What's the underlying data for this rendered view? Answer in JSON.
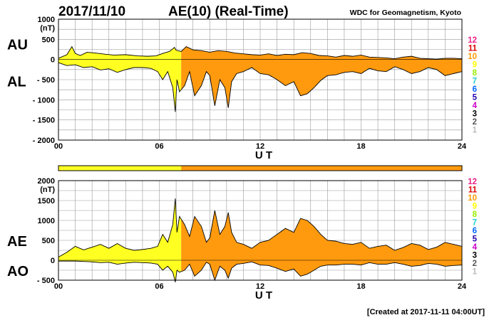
{
  "header": {
    "date": "2017/11/10",
    "title": "AE(10) (Real-Time)",
    "source": "WDC for Geomagnetism, Kyoto"
  },
  "footer": {
    "created": "[Created at 2017-11-11 04:00UT]"
  },
  "colors": {
    "fill_station_9": "#ffff22",
    "fill_station_10": "#ff9a0e",
    "grid": "#999999",
    "axis": "#000000"
  },
  "station_scale": {
    "labels": [
      "12",
      "11",
      "10",
      "9",
      "8",
      "7",
      "6",
      "5",
      "4",
      "3",
      "2",
      "1"
    ],
    "colors": [
      "#ee2288",
      "#dd0000",
      "#ff9900",
      "#ffff00",
      "#99ee00",
      "#22cccc",
      "#0066ff",
      "#2200aa",
      "#cc00cc",
      "#000000",
      "#555555",
      "#bbbbbb"
    ]
  },
  "chart_data": [
    {
      "type": "area",
      "name": "AU-AL",
      "left_labels": [
        "AU",
        "AL"
      ],
      "yunit": "(nT)",
      "xlabel": "U T",
      "xticks": [
        0,
        6,
        12,
        18,
        24
      ],
      "xtick_labels": [
        "00",
        "06",
        "12",
        "18",
        "24"
      ],
      "yticks": [
        1000,
        500,
        0,
        -500,
        -1000,
        -1500,
        -2000
      ],
      "ytick_labels": [
        "1000",
        "500",
        "0",
        "- 500",
        "- 1000",
        "- 1500",
        "- 2000"
      ],
      "xlim": [
        0,
        24
      ],
      "ylim": [
        -2000,
        1000
      ],
      "grid": true,
      "series": [
        {
          "name": "AU",
          "x": [
            0,
            0.5,
            0.8,
            1.0,
            1.3,
            1.7,
            2.2,
            2.8,
            3.3,
            4.0,
            4.7,
            5.3,
            5.8,
            6.2,
            6.6,
            6.9,
            7.0,
            7.3,
            7.6,
            8.0,
            8.5,
            9.0,
            9.5,
            10.0,
            10.5,
            11.0,
            11.5,
            12.0,
            12.5,
            13.0,
            13.5,
            14.0,
            14.5,
            15.0,
            15.5,
            16.0,
            16.5,
            17.0,
            17.5,
            18.0,
            18.5,
            19.0,
            19.5,
            20.0,
            20.5,
            21.0,
            21.5,
            22.0,
            22.5,
            23.0,
            23.5,
            24.0
          ],
          "values": [
            30,
            120,
            320,
            150,
            100,
            180,
            160,
            130,
            110,
            120,
            90,
            80,
            90,
            150,
            200,
            300,
            230,
            200,
            320,
            240,
            220,
            180,
            220,
            200,
            160,
            140,
            120,
            110,
            140,
            100,
            130,
            120,
            170,
            150,
            100,
            90,
            60,
            100,
            80,
            110,
            60,
            50,
            40,
            20,
            60,
            80,
            30,
            20,
            10,
            30,
            30,
            20
          ]
        },
        {
          "name": "AL",
          "x": [
            0,
            0.5,
            1.0,
            1.5,
            2.0,
            2.5,
            3.0,
            3.5,
            4.0,
            4.5,
            5.0,
            5.5,
            5.9,
            6.2,
            6.5,
            6.8,
            6.95,
            7.05,
            7.2,
            7.5,
            7.8,
            8.1,
            8.5,
            8.8,
            9.0,
            9.3,
            9.6,
            9.9,
            10.1,
            10.3,
            10.6,
            11.0,
            11.5,
            12.0,
            12.5,
            13.0,
            13.5,
            14.0,
            14.4,
            14.8,
            15.2,
            15.6,
            16.0,
            16.5,
            17.0,
            17.5,
            18.0,
            18.5,
            19.0,
            19.5,
            20.0,
            20.5,
            21.0,
            21.5,
            22.0,
            22.5,
            23.0,
            23.5,
            24.0
          ],
          "values": [
            -80,
            -150,
            -130,
            -200,
            -180,
            -260,
            -230,
            -320,
            -250,
            -200,
            -200,
            -220,
            -300,
            -500,
            -300,
            -700,
            -1300,
            -500,
            -800,
            -650,
            -300,
            -900,
            -650,
            -300,
            -400,
            -1150,
            -500,
            -700,
            -1200,
            -550,
            -350,
            -300,
            -200,
            -350,
            -380,
            -500,
            -650,
            -550,
            -900,
            -850,
            -700,
            -520,
            -400,
            -380,
            -320,
            -300,
            -350,
            -220,
            -280,
            -300,
            -180,
            -250,
            -350,
            -300,
            -200,
            -250,
            -400,
            -350,
            -300
          ]
        }
      ]
    },
    {
      "type": "area",
      "name": "AE-AO",
      "left_labels": [
        "AE",
        "AO"
      ],
      "yunit": "(nT)",
      "xlabel": "U T",
      "xticks": [
        0,
        6,
        12,
        18,
        24
      ],
      "xtick_labels": [
        "00",
        "06",
        "12",
        "18",
        "24"
      ],
      "yticks": [
        2000,
        1500,
        1000,
        500,
        0,
        -500
      ],
      "ytick_labels": [
        "2000",
        "1500",
        "1000",
        "500",
        "0",
        "- 500"
      ],
      "xlim": [
        0,
        24
      ],
      "ylim": [
        -500,
        2000
      ],
      "grid": true,
      "series": [
        {
          "name": "AE",
          "x": [
            0,
            0.5,
            1.0,
            1.5,
            2.0,
            2.5,
            3.0,
            3.5,
            4.0,
            4.5,
            5.0,
            5.5,
            5.9,
            6.2,
            6.5,
            6.8,
            6.95,
            7.05,
            7.2,
            7.5,
            7.8,
            8.1,
            8.5,
            8.8,
            9.0,
            9.3,
            9.6,
            9.9,
            10.1,
            10.3,
            10.6,
            11.0,
            11.5,
            12.0,
            12.5,
            13.0,
            13.5,
            14.0,
            14.4,
            14.8,
            15.2,
            15.6,
            16.0,
            16.5,
            17.0,
            17.5,
            18.0,
            18.5,
            19.0,
            19.5,
            20.0,
            20.5,
            21.0,
            21.5,
            22.0,
            22.5,
            23.0,
            23.5,
            24.0
          ],
          "values": [
            80,
            200,
            350,
            260,
            330,
            400,
            300,
            420,
            300,
            250,
            270,
            300,
            350,
            650,
            450,
            900,
            1550,
            700,
            1100,
            900,
            600,
            1100,
            850,
            450,
            560,
            1250,
            650,
            850,
            1200,
            700,
            450,
            400,
            300,
            450,
            500,
            650,
            800,
            700,
            1050,
            1000,
            850,
            650,
            500,
            480,
            420,
            400,
            450,
            300,
            350,
            380,
            250,
            320,
            420,
            380,
            270,
            330,
            450,
            400,
            350
          ]
        },
        {
          "name": "AO",
          "x": [
            0,
            0.5,
            1.0,
            1.5,
            2.0,
            2.5,
            3.0,
            3.5,
            4.0,
            4.5,
            5.0,
            5.5,
            5.9,
            6.2,
            6.5,
            6.8,
            6.95,
            7.05,
            7.2,
            7.5,
            7.8,
            8.1,
            8.5,
            8.8,
            9.0,
            9.3,
            9.6,
            9.9,
            10.1,
            10.3,
            10.6,
            11.0,
            11.5,
            12.0,
            12.5,
            13.0,
            13.5,
            14.0,
            14.4,
            14.8,
            15.2,
            15.6,
            16.0,
            16.5,
            17.0,
            17.5,
            18.0,
            18.5,
            19.0,
            19.5,
            20.0,
            20.5,
            21.0,
            21.5,
            22.0,
            22.5,
            23.0,
            23.5,
            24.0
          ],
          "values": [
            -20,
            -20,
            -20,
            -30,
            -40,
            -60,
            -50,
            -100,
            -70,
            -50,
            -60,
            -70,
            -100,
            -250,
            -150,
            -300,
            -550,
            -250,
            -300,
            -250,
            -100,
            -400,
            -250,
            -50,
            -100,
            -500,
            -150,
            -250,
            -450,
            -200,
            -100,
            -80,
            -40,
            -120,
            -130,
            -200,
            -280,
            -220,
            -400,
            -350,
            -250,
            -150,
            -120,
            -120,
            -100,
            -100,
            -120,
            -60,
            -100,
            -100,
            -60,
            -100,
            -150,
            -130,
            -80,
            -100,
            -150,
            -130,
            -120
          ]
        }
      ]
    }
  ]
}
